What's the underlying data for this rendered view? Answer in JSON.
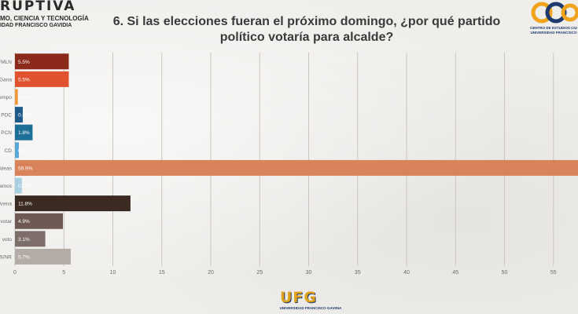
{
  "header": {
    "brand_left": "RUPTIVA",
    "brand_left_line1": "MO, CIENCIA Y TECNOLOGÍA",
    "brand_left_line2": "IDAD FRANCISCO GAVIDIA",
    "brand_right_line1": "CENTRO DE ESTUDIOS CIU",
    "brand_right_line2": "UNIVERSIDAD FRANCISCO",
    "title_line1": "6. Si las elecciones fueran el próximo domingo, ¿por qué partido",
    "title_line2": "político votaría para alcalde?"
  },
  "footer": {
    "ufg_mark": "UFG",
    "ufg_sub": "UNIVERSIDAD FRANCISCO GAVIDIA"
  },
  "colors": {
    "grid": "#c9c6c1",
    "value_label": "#ffffff",
    "axis_text": "#6b6b6b"
  },
  "chart_data": {
    "type": "bar",
    "orientation": "horizontal",
    "categories": [
      "FMLN",
      "Gana",
      "Tiempo",
      "PDC",
      "PCN",
      "CD",
      "Nuevas Ideas",
      "Vamos",
      "Arena",
      "No votar",
      "Nulo voto",
      "NS/NR"
    ],
    "category_labels_visible": [
      "FMLN",
      "Gana",
      "empo",
      "PDC",
      "PCN",
      "CD",
      "Ideas",
      "amos",
      "Arena",
      "votar",
      "voto",
      "S/NR"
    ],
    "values": [
      5.5,
      5.5,
      0.3,
      0.8,
      1.8,
      0.4,
      59.9,
      0.7,
      11.8,
      4.9,
      3.1,
      5.7
    ],
    "value_labels": [
      "5.5%",
      "5.5%",
      "0.3%",
      "0.8%",
      "1.8%",
      "0.4%",
      "59.9%",
      "0.7%",
      "11.8%",
      "4.9%",
      "3.1%",
      "5.7%"
    ],
    "colors": [
      "#8b2a1a",
      "#e0532e",
      "#f0993e",
      "#1e5a8a",
      "#1d6f97",
      "#5aa6d6",
      "#d9835a",
      "#a8cfe0",
      "#3a2a22",
      "#6e5a52",
      "#7d6e69",
      "#b3aca6"
    ],
    "xlim": [
      0,
      55
    ],
    "xticks": [
      0,
      5,
      10,
      15,
      20,
      25,
      30,
      35,
      40,
      45,
      50,
      55
    ],
    "grid": true,
    "title": "6. Si las elecciones fueran el próximo domingo, ¿por qué partido político votaría para alcalde?",
    "xlabel": "",
    "ylabel": ""
  }
}
